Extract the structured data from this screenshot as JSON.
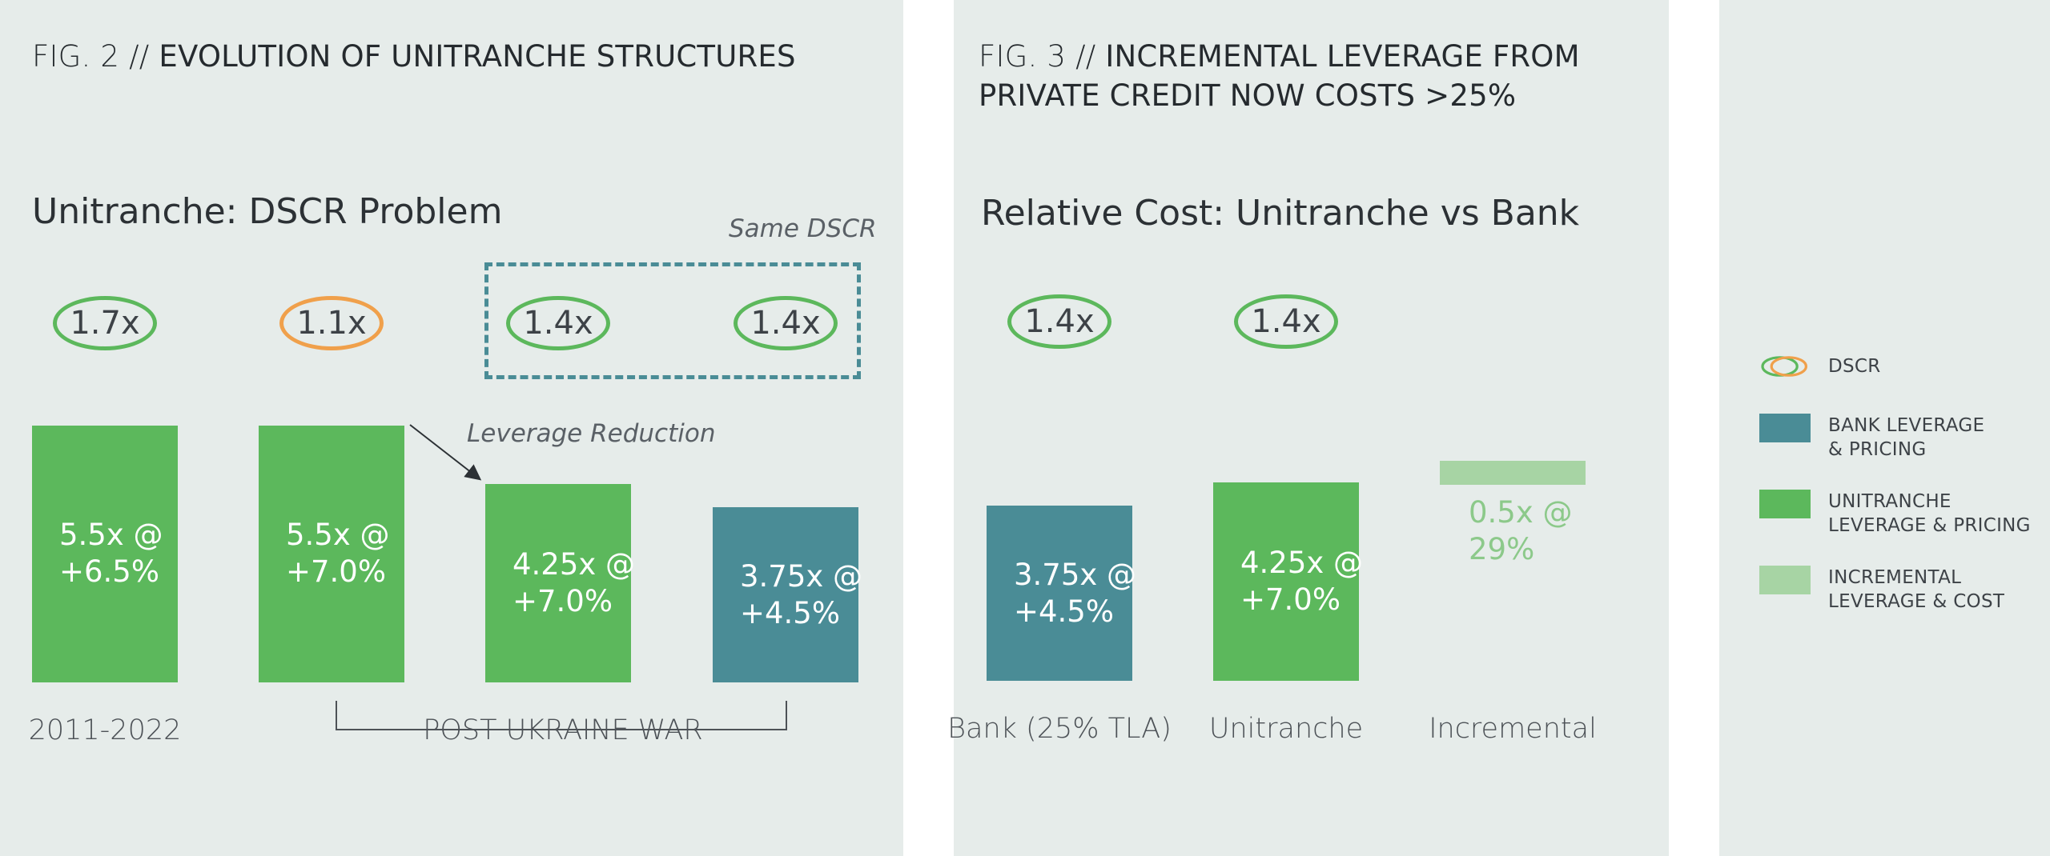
{
  "fig2": {
    "title_prefix": "FIG. 2 // ",
    "title_main": "EVOLUTION OF UNITRANCHE STRUCTURES",
    "subtitle": "Unitranche: DSCR Problem",
    "same_dscr_note": "Same DSCR",
    "leverage_reduction_note": "Leverage Reduction",
    "post_war_label": "POST UKRAINE WAR"
  },
  "fig3": {
    "title_prefix": "FIG. 3 // ",
    "title_line1": "INCREMENTAL LEVERAGE FROM",
    "title_line2": "PRIVATE CREDIT NOW COSTS >25%",
    "subtitle": "Relative Cost: Unitranche vs Bank"
  },
  "legend": {
    "items": [
      {
        "label": "DSCR",
        "swatch": "dscr"
      },
      {
        "label": "BANK LEVERAGE\n& PRICING",
        "swatch": "#4a8c96"
      },
      {
        "label": "UNITRANCHE\nLEVERAGE & PRICING",
        "swatch": "#5cb85c"
      },
      {
        "label": "INCREMENTAL\nLEVERAGE & COST",
        "swatch": "#a7d4a4"
      }
    ]
  },
  "colors": {
    "unitranche": "#5cb85c",
    "bank": "#4a8c96",
    "incremental": "#a7d4a4",
    "dscr_ok": "#5cb85c",
    "dscr_problem": "#f0a04b"
  },
  "chart_data": [
    {
      "type": "bar",
      "title": "Unitranche: DSCR Problem",
      "categories": [
        "2011-2022",
        "",
        "",
        ""
      ],
      "group_label": "POST UKRAINE WAR",
      "leverage": [
        5.5,
        5.5,
        4.25,
        3.75
      ],
      "bar_labels": [
        "5.5x @\n+6.5%",
        "5.5x @\n+7.0%",
        "4.25x @\n+7.0%",
        "3.75x @\n+4.5%"
      ],
      "dscr": [
        "1.7x",
        "1.1x",
        "1.4x",
        "1.4x"
      ],
      "dscr_status": [
        "ok",
        "problem",
        "ok",
        "ok"
      ],
      "series_type": [
        "unitranche",
        "unitranche",
        "unitranche",
        "bank"
      ]
    },
    {
      "type": "bar",
      "title": "Relative Cost: Unitranche vs Bank",
      "categories": [
        "Bank (25% TLA)",
        "Unitranche",
        "Incremental"
      ],
      "leverage": [
        3.75,
        4.25,
        0.5
      ],
      "bar_labels": [
        "3.75x @\n+4.5%",
        "4.25x @\n+7.0%",
        "0.5x @\n29%"
      ],
      "dscr": [
        "1.4x",
        "1.4x",
        ""
      ],
      "series_type": [
        "bank",
        "unitranche",
        "incremental"
      ]
    }
  ]
}
